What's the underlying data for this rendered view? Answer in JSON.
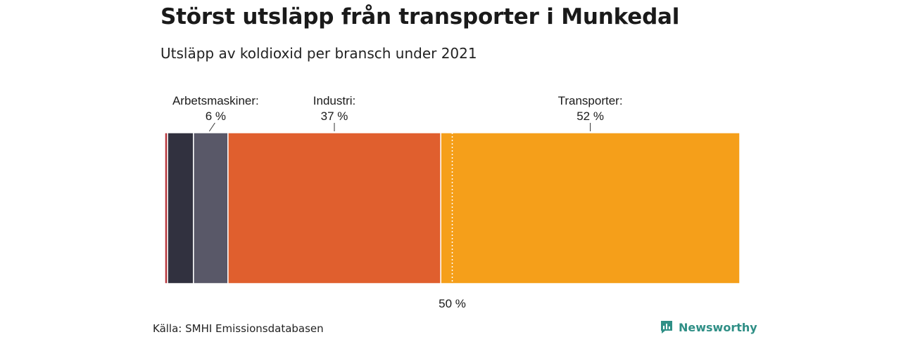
{
  "title": "Störst utsläpp från transporter i Munkedal",
  "subtitle": "Utsläpp av koldioxid per bransch under 2021",
  "source": "Källa: SMHI Emissionsdatabasen",
  "brand": "Newsworthy",
  "colors": {
    "brand": "#2f8f86",
    "segments": [
      "#b5343a",
      "#31313f",
      "#595868",
      "#e05f2e",
      "#f59f1a"
    ]
  },
  "chart_data": {
    "type": "bar",
    "orientation": "horizontal-stacked-100",
    "unit": "%",
    "segments": [
      {
        "value": 0.5,
        "label": "",
        "value_label": ""
      },
      {
        "value": 4.5,
        "label": "",
        "value_label": ""
      },
      {
        "value": 6,
        "label": "Arbetsmaskiner:",
        "value_label": "6 %"
      },
      {
        "value": 37,
        "label": "Industri:",
        "value_label": "37 %"
      },
      {
        "value": 52,
        "label": "Transporter:",
        "value_label": "52 %"
      }
    ],
    "reference_line": {
      "value": 50,
      "label": "50 %"
    }
  }
}
